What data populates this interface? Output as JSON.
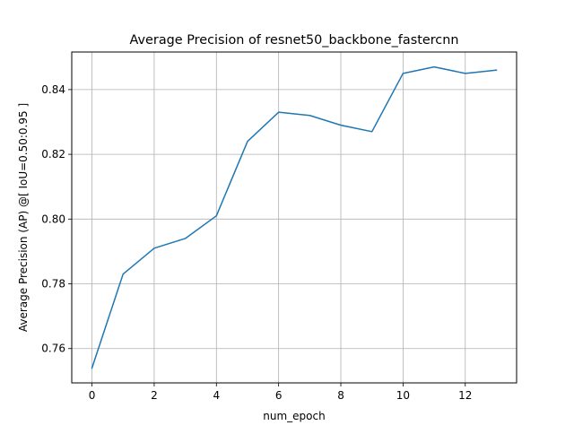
{
  "chart_data": {
    "type": "line",
    "title": "Average Precision of resnet50_backbone_fastercnn",
    "xlabel": "num_epoch",
    "ylabel": "Average Precision (AP) @[ IoU=0.50:0.95 ]",
    "xlim": [
      -0.65,
      13.65
    ],
    "ylim": [
      0.7494,
      0.8516
    ],
    "x_ticks": [
      0,
      2,
      4,
      6,
      8,
      10,
      12
    ],
    "y_ticks": [
      0.76,
      0.78,
      0.8,
      0.82,
      0.84
    ],
    "x_tick_labels": [
      "0",
      "2",
      "4",
      "6",
      "8",
      "10",
      "12"
    ],
    "y_tick_labels": [
      "0.76",
      "0.78",
      "0.80",
      "0.82",
      "0.84"
    ],
    "grid": true,
    "legend": false,
    "series": [
      {
        "color": "#1f77b4",
        "x": [
          0,
          1,
          2,
          3,
          4,
          5,
          6,
          7,
          8,
          9,
          10,
          11,
          12,
          13
        ],
        "y": [
          0.754,
          0.783,
          0.791,
          0.794,
          0.801,
          0.824,
          0.833,
          0.832,
          0.829,
          0.827,
          0.845,
          0.847,
          0.845,
          0.846
        ]
      }
    ]
  }
}
